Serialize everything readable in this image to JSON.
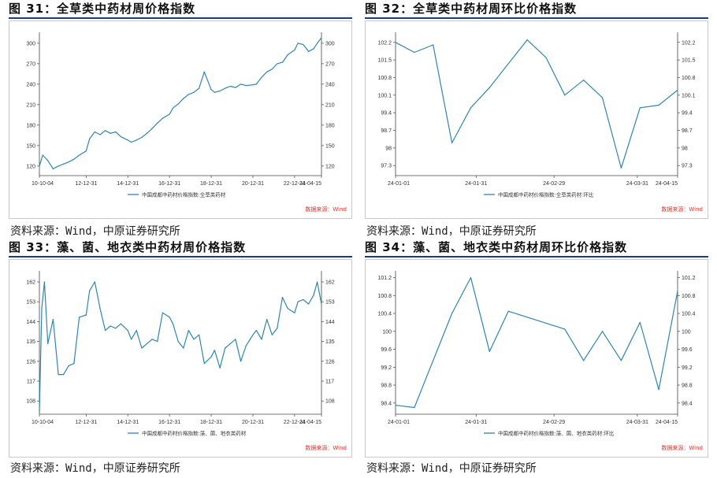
{
  "colors": {
    "line": "#2e86b0",
    "rule": "#1a3d7c",
    "source_label": "#e0322b"
  },
  "panels": [
    {
      "title": "图 31：全草类中药材周价格指数",
      "source": "资料来源：Wind，中原证券研究所",
      "data_source_label": "数据来源：Wind",
      "legend": "中国成都中药材价格指数:全草类药材"
    },
    {
      "title": "图 32：全草类中药材周环比价格指数",
      "source": "资料来源：Wind，中原证券研究所",
      "data_source_label": "数据来源：Wind",
      "legend": "中国成都中药材价格指数:全草类药材:环比"
    },
    {
      "title": "图 33：藻、菌、地衣类中药材周价格指数",
      "source": "资料来源：Wind，中原证券研究所",
      "data_source_label": "数据来源：Wind",
      "legend": "中国成都中药材价格指数:藻、菌、地衣类药材"
    },
    {
      "title": "图 34：藻、菌、地衣类中药材周环比价格指数",
      "source": "资料来源：Wind，中原证券研究所",
      "data_source_label": "数据来源：Wind",
      "legend": "中国成都中药材价格指数:藻、菌、地衣类药材:环比"
    }
  ],
  "chart_data": [
    {
      "type": "line",
      "title": "图 31：全草类中药材周价格指数",
      "x_ticks": [
        "10-10-04",
        "12-12-31",
        "14-12-31",
        "16-12-31",
        "18-12-31",
        "20-12-31",
        "22-12-31",
        "24-04-15"
      ],
      "yticks_left": [
        120,
        150,
        180,
        210,
        240,
        270,
        300
      ],
      "yticks_right": [
        120,
        150,
        180,
        210,
        240,
        270,
        300
      ],
      "ylim": [
        106,
        316
      ],
      "grid": false,
      "legend_position": "bottom-center",
      "series": [
        {
          "name": "中国成都中药材价格指数:全草类药材",
          "x": [
            "2010-10-04",
            "2010-12-01",
            "2011-03-01",
            "2011-06-01",
            "2011-09-01",
            "2011-12-01",
            "2012-03-01",
            "2012-06-01",
            "2012-09-01",
            "2012-12-31",
            "2013-03-01",
            "2013-06-01",
            "2013-09-01",
            "2013-12-01",
            "2014-03-01",
            "2014-06-01",
            "2014-09-01",
            "2014-12-31",
            "2015-03-01",
            "2015-06-01",
            "2015-09-01",
            "2015-12-01",
            "2016-03-01",
            "2016-06-01",
            "2016-09-01",
            "2016-12-31",
            "2017-03-01",
            "2017-06-01",
            "2017-09-01",
            "2017-12-01",
            "2018-03-01",
            "2018-06-01",
            "2018-09-01",
            "2018-12-31",
            "2019-03-01",
            "2019-06-01",
            "2019-09-01",
            "2019-12-01",
            "2020-03-01",
            "2020-06-01",
            "2020-09-01",
            "2020-12-31",
            "2021-03-01",
            "2021-06-01",
            "2021-09-01",
            "2021-12-01",
            "2022-03-01",
            "2022-06-01",
            "2022-09-01",
            "2022-12-31",
            "2023-03-01",
            "2023-06-01",
            "2023-09-01",
            "2023-12-01",
            "2024-02-01",
            "2024-04-15"
          ],
          "values": [
            120,
            136,
            128,
            116,
            120,
            123,
            126,
            130,
            136,
            142,
            160,
            170,
            166,
            172,
            168,
            170,
            163,
            158,
            155,
            158,
            162,
            168,
            175,
            183,
            190,
            196,
            205,
            211,
            219,
            225,
            228,
            234,
            258,
            232,
            228,
            230,
            234,
            237,
            235,
            240,
            238,
            239,
            240,
            250,
            258,
            262,
            270,
            272,
            283,
            290,
            300,
            298,
            288,
            292,
            300,
            308
          ]
        }
      ]
    },
    {
      "type": "line",
      "title": "图 32：全草类中药材周环比价格指数",
      "x_ticks": [
        "24-01-01",
        "24-01-31",
        "24-02-29",
        "24-03-31",
        "24-04-15"
      ],
      "yticks_left": [
        97.3,
        98,
        98.7,
        99.4,
        100.1,
        100.8,
        101.5,
        102.2
      ],
      "yticks_right": [
        97.3,
        98,
        98.7,
        99.4,
        100.1,
        100.8,
        101.5,
        102.2
      ],
      "ylim": [
        96.9,
        102.6
      ],
      "grid": false,
      "legend_position": "bottom-center",
      "series": [
        {
          "name": "中国成都中药材价格指数:全草类药材:环比",
          "x": [
            "2024-01-01",
            "2024-01-08",
            "2024-01-15",
            "2024-01-22",
            "2024-01-29",
            "2024-02-05",
            "2024-02-19",
            "2024-02-26",
            "2024-03-04",
            "2024-03-11",
            "2024-03-18",
            "2024-03-25",
            "2024-04-01",
            "2024-04-08",
            "2024-04-15"
          ],
          "values": [
            102.2,
            101.8,
            102.1,
            98.2,
            99.6,
            100.4,
            102.3,
            101.6,
            100.1,
            100.7,
            100.0,
            97.2,
            99.6,
            99.7,
            100.3
          ]
        }
      ]
    },
    {
      "type": "line",
      "title": "图 33：藻、菌、地衣类中药材周价格指数",
      "x_ticks": [
        "10-10-04",
        "12-12-31",
        "14-12-31",
        "16-12-31",
        "18-12-31",
        "20-12-31",
        "22-12-31",
        "24-04-15"
      ],
      "yticks_left": [
        108,
        117,
        126,
        135,
        144,
        153,
        162
      ],
      "yticks_right": [
        108,
        117,
        126,
        135,
        144,
        153,
        162
      ],
      "ylim": [
        102,
        167
      ],
      "grid": false,
      "legend_position": "bottom-center",
      "series": [
        {
          "name": "中国成都中药材价格指数:藻、菌、地衣类药材",
          "x": [
            "2010-10-04",
            "2010-11-15",
            "2010-12-31",
            "2011-03-01",
            "2011-06-01",
            "2011-09-01",
            "2011-12-01",
            "2012-03-01",
            "2012-06-01",
            "2012-09-01",
            "2012-12-31",
            "2013-03-01",
            "2013-06-01",
            "2013-09-01",
            "2013-12-01",
            "2014-03-01",
            "2014-06-01",
            "2014-09-01",
            "2014-12-31",
            "2015-03-01",
            "2015-06-01",
            "2015-09-01",
            "2015-12-01",
            "2016-03-01",
            "2016-06-01",
            "2016-09-01",
            "2016-12-31",
            "2017-03-01",
            "2017-06-01",
            "2017-09-01",
            "2017-12-01",
            "2018-03-01",
            "2018-06-01",
            "2018-09-01",
            "2018-12-31",
            "2019-03-01",
            "2019-06-01",
            "2019-09-01",
            "2019-12-01",
            "2020-03-01",
            "2020-06-01",
            "2020-09-01",
            "2020-12-31",
            "2021-03-01",
            "2021-06-01",
            "2021-09-01",
            "2021-12-01",
            "2022-03-01",
            "2022-06-01",
            "2022-09-01",
            "2022-12-31",
            "2023-03-01",
            "2023-06-01",
            "2023-09-01",
            "2023-12-01",
            "2024-02-01",
            "2024-04-15"
          ],
          "values": [
            103,
            150,
            162,
            134,
            145,
            120,
            120,
            124,
            125,
            146,
            147,
            158,
            162,
            150,
            140,
            142,
            141,
            143,
            140,
            136,
            140,
            132,
            134,
            136,
            135,
            148,
            146,
            143,
            135,
            132,
            140,
            136,
            138,
            125,
            128,
            131,
            123,
            132,
            134,
            136,
            126,
            133,
            138,
            140,
            136,
            145,
            138,
            141,
            155,
            150,
            148,
            153,
            154,
            152,
            156,
            162,
            152
          ]
        }
      ]
    },
    {
      "type": "line",
      "title": "图 34：藻、菌、地衣类中药材周环比价格指数",
      "x_ticks": [
        "24-01-01",
        "24-01-31",
        "24-02-29",
        "24-03-31",
        "24-04-15"
      ],
      "yticks_left": [
        98.4,
        98.8,
        99.2,
        99.6,
        100,
        100.4,
        100.8,
        101.2
      ],
      "yticks_right": [
        98.4,
        98.8,
        99.2,
        99.6,
        100,
        100.4,
        100.8,
        101.2
      ],
      "ylim": [
        98.15,
        101.35
      ],
      "grid": false,
      "legend_position": "bottom-center",
      "series": [
        {
          "name": "中国成都中药材价格指数:藻、菌、地衣类药材:环比",
          "x": [
            "2024-01-01",
            "2024-01-08",
            "2024-01-22",
            "2024-01-29",
            "2024-02-05",
            "2024-02-12",
            "2024-03-04",
            "2024-03-11",
            "2024-03-18",
            "2024-03-25",
            "2024-04-01",
            "2024-04-08",
            "2024-04-15"
          ],
          "values": [
            98.35,
            98.3,
            100.4,
            101.2,
            99.55,
            100.45,
            100.05,
            99.35,
            100.0,
            99.35,
            100.2,
            98.7,
            100.9
          ]
        }
      ]
    }
  ]
}
